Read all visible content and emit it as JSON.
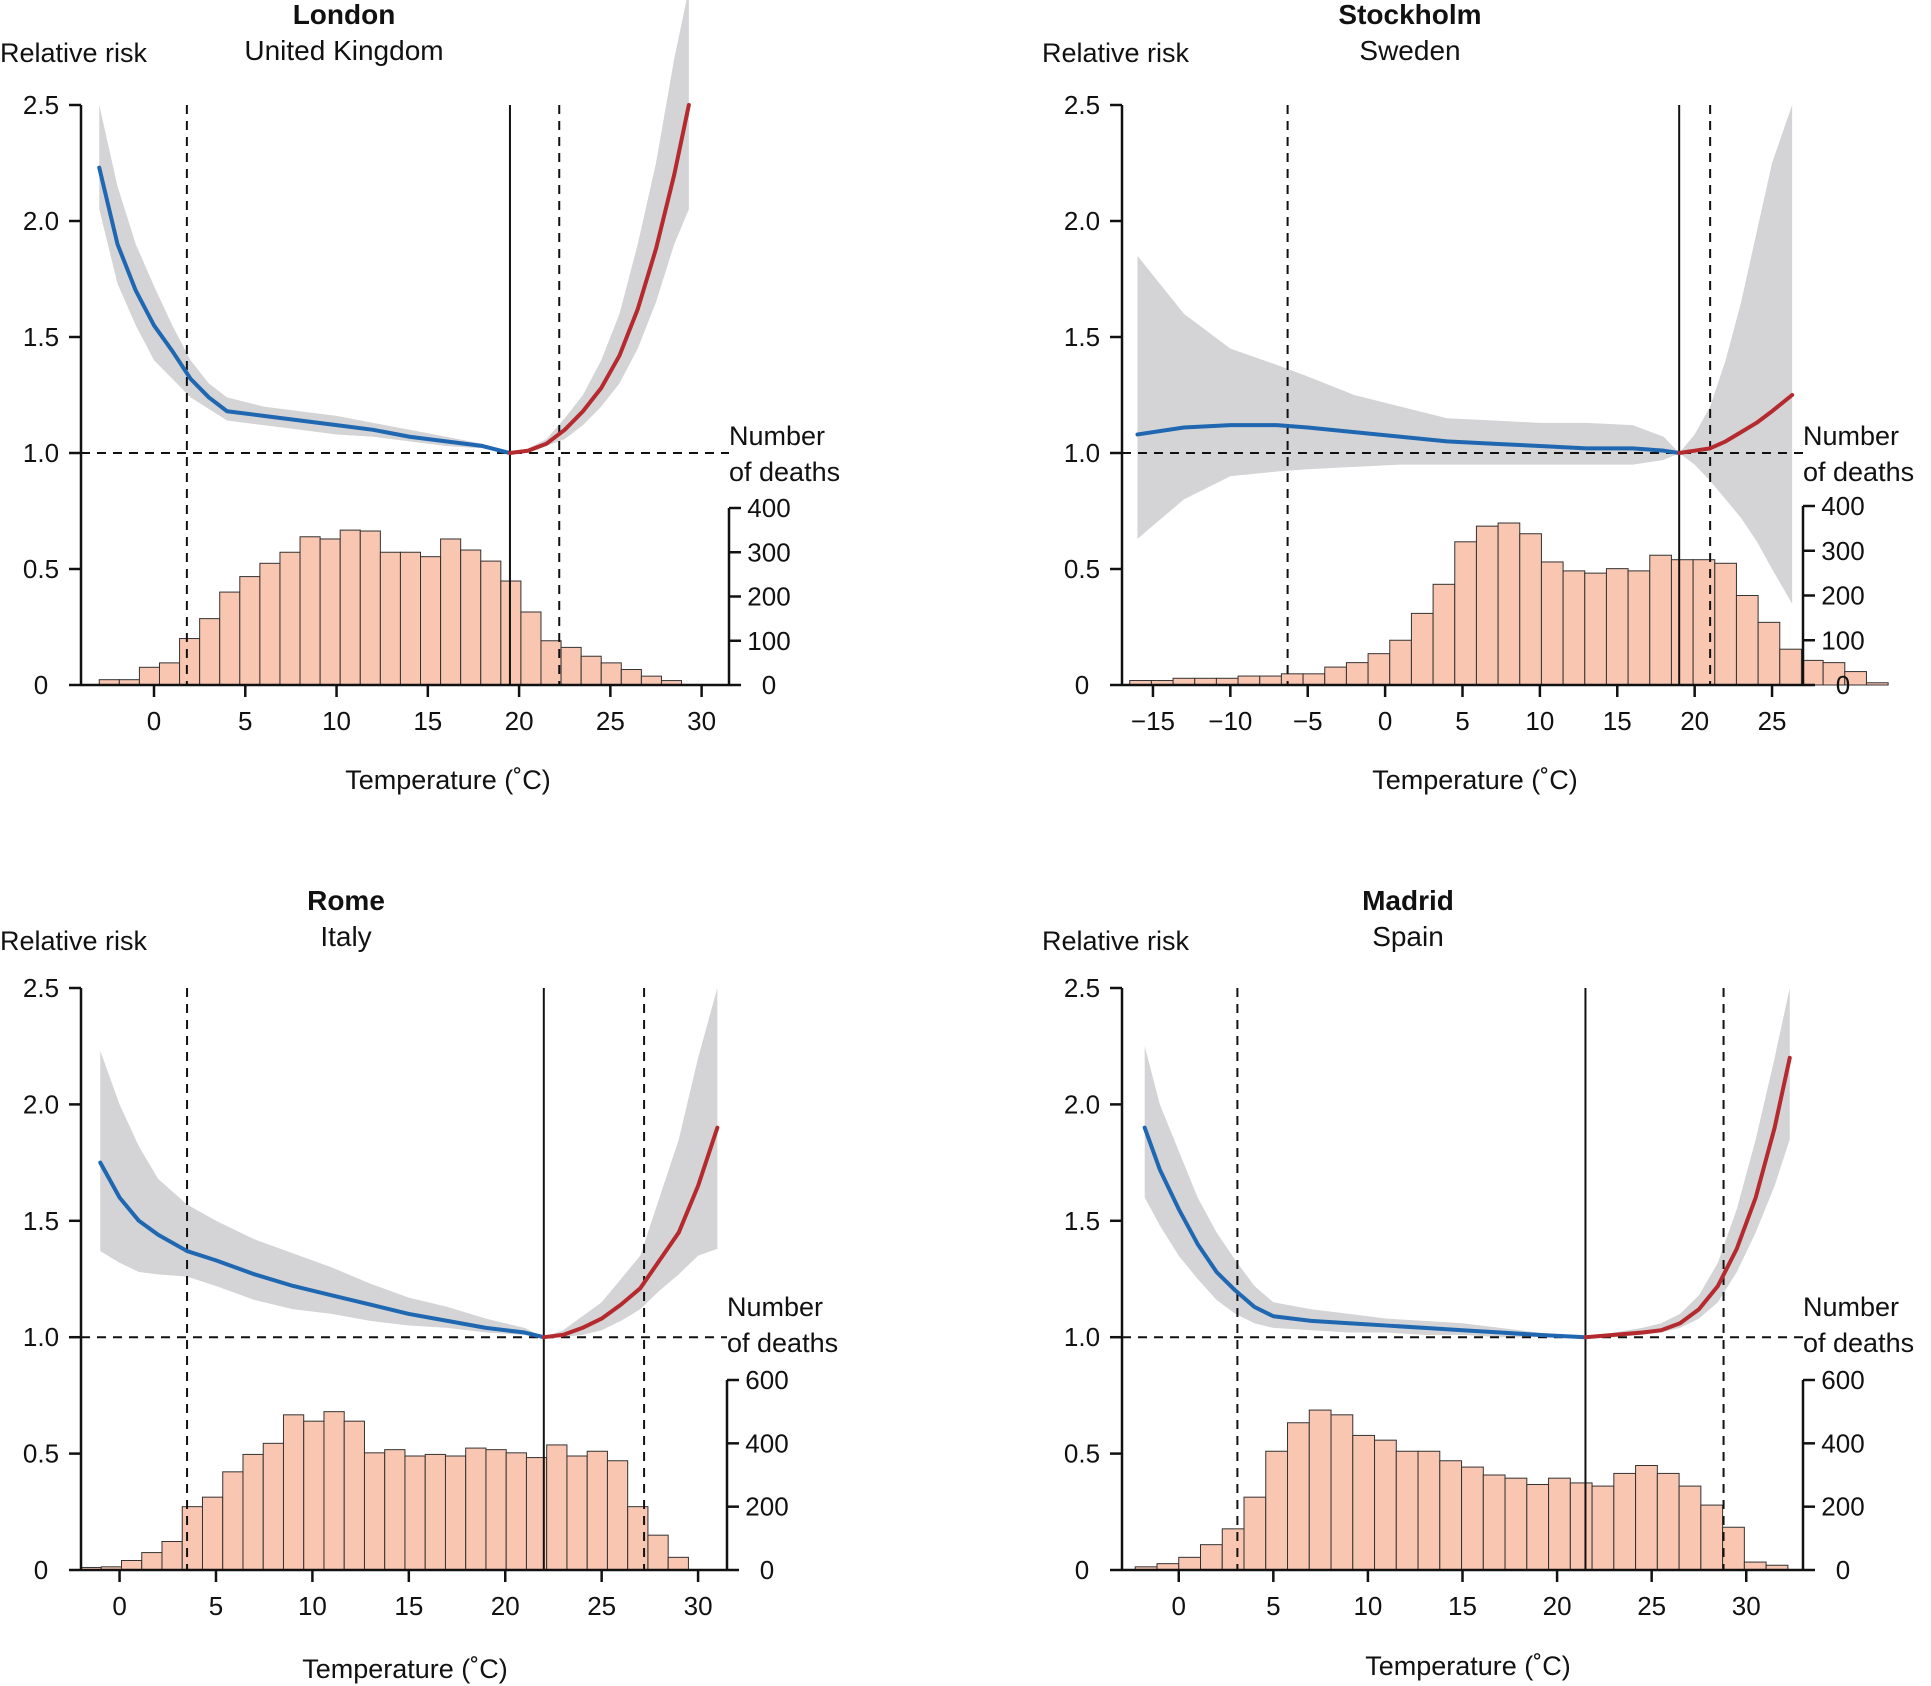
{
  "chart_data": [
    {
      "type": "line",
      "title": "London",
      "subtitle": "United Kingdom",
      "ylabel": "Relative risk",
      "y2label": [
        "Number",
        "of deaths"
      ],
      "xlabel": "Temperature (˚C)",
      "xlim": [
        -4,
        31.5
      ],
      "ylim": [
        0,
        2.5
      ],
      "y2lim": [
        0,
        400
      ],
      "xticks": [
        0,
        5,
        10,
        15,
        20,
        25,
        30
      ],
      "yticks": [
        0,
        0.5,
        1.0,
        1.5,
        2.0,
        2.5
      ],
      "ytick_labels": [
        "0",
        "0.5",
        "1.0",
        "1.5",
        "2.0",
        "2.5"
      ],
      "y2ticks": [
        0,
        100,
        200,
        300,
        400
      ],
      "mmt": 19.5,
      "percentile_lines": [
        1.8,
        22.2
      ],
      "cold_curve": {
        "x": [
          -3,
          -2,
          -1,
          0,
          1,
          2,
          3,
          4,
          6,
          8,
          10,
          12,
          14,
          16,
          18,
          19.5
        ],
        "y": [
          2.23,
          1.9,
          1.7,
          1.55,
          1.44,
          1.32,
          1.24,
          1.18,
          1.16,
          1.14,
          1.12,
          1.1,
          1.07,
          1.05,
          1.03,
          1.0
        ]
      },
      "cold_ci_upper": [
        2.5,
        2.15,
        1.9,
        1.72,
        1.55,
        1.4,
        1.3,
        1.24,
        1.2,
        1.18,
        1.16,
        1.13,
        1.1,
        1.07,
        1.04,
        1.0
      ],
      "cold_ci_lower": [
        2.05,
        1.73,
        1.55,
        1.4,
        1.32,
        1.24,
        1.19,
        1.14,
        1.12,
        1.1,
        1.08,
        1.07,
        1.05,
        1.03,
        1.02,
        1.0
      ],
      "heat_curve": {
        "x": [
          19.5,
          20.5,
          21.5,
          22.5,
          23.5,
          24.5,
          25.5,
          26.5,
          27.5,
          28.5,
          29.3
        ],
        "y": [
          1.0,
          1.01,
          1.04,
          1.1,
          1.18,
          1.28,
          1.42,
          1.62,
          1.88,
          2.2,
          2.5
        ]
      },
      "heat_ci_upper": [
        1.0,
        1.02,
        1.06,
        1.15,
        1.25,
        1.4,
        1.6,
        1.9,
        2.25,
        2.7,
        3.0
      ],
      "heat_ci_lower": [
        1.0,
        1.0,
        1.03,
        1.06,
        1.12,
        1.2,
        1.3,
        1.45,
        1.65,
        1.9,
        2.05
      ],
      "hist": {
        "start": -3,
        "width": 1.1,
        "counts": [
          12,
          12,
          40,
          50,
          105,
          150,
          210,
          245,
          275,
          300,
          335,
          330,
          350,
          348,
          300,
          300,
          290,
          330,
          305,
          280,
          235,
          165,
          100,
          85,
          65,
          50,
          35,
          20,
          10
        ]
      }
    },
    {
      "type": "line",
      "title": "Stockholm",
      "subtitle": "Sweden",
      "ylabel": "Relative risk",
      "y2label": [
        "Number",
        "of deaths"
      ],
      "xlabel": "Temperature (˚C)",
      "xlim": [
        -17,
        27
      ],
      "ylim": [
        0,
        2.5
      ],
      "y2lim": [
        0,
        400
      ],
      "xticks": [
        -15,
        -10,
        -5,
        0,
        5,
        10,
        15,
        20,
        25
      ],
      "xtick_labels": [
        "−15",
        "−10",
        "−5",
        "0",
        "5",
        "10",
        "15",
        "20",
        "25"
      ],
      "yticks": [
        0,
        0.5,
        1.0,
        1.5,
        2.0,
        2.5
      ],
      "ytick_labels": [
        "0",
        "0.5",
        "1.0",
        "1.5",
        "2.0",
        "2.5"
      ],
      "y2ticks": [
        0,
        100,
        200,
        300,
        400
      ],
      "mmt": 19,
      "percentile_lines": [
        -6.3,
        21
      ],
      "cold_curve": {
        "x": [
          -16,
          -13,
          -10,
          -7,
          -5,
          -2,
          1,
          4,
          7,
          10,
          13,
          16,
          18,
          19
        ],
        "y": [
          1.08,
          1.11,
          1.12,
          1.12,
          1.11,
          1.09,
          1.07,
          1.05,
          1.04,
          1.03,
          1.02,
          1.02,
          1.01,
          1.0
        ]
      },
      "cold_ci_upper": [
        1.85,
        1.6,
        1.45,
        1.38,
        1.33,
        1.25,
        1.2,
        1.15,
        1.14,
        1.13,
        1.13,
        1.12,
        1.07,
        1.0
      ],
      "cold_ci_lower": [
        0.63,
        0.8,
        0.9,
        0.92,
        0.93,
        0.94,
        0.95,
        0.95,
        0.95,
        0.95,
        0.95,
        0.95,
        0.97,
        1.0
      ],
      "heat_curve": {
        "x": [
          19,
          20,
          21,
          22,
          23,
          24,
          25,
          26.3
        ],
        "y": [
          1.0,
          1.01,
          1.02,
          1.05,
          1.09,
          1.13,
          1.18,
          1.25
        ]
      },
      "heat_ci_upper": [
        1.0,
        1.08,
        1.2,
        1.4,
        1.65,
        1.95,
        2.25,
        2.5
      ],
      "heat_ci_lower": [
        1.0,
        0.95,
        0.88,
        0.8,
        0.72,
        0.62,
        0.5,
        0.35
      ],
      "hist": {
        "start": -16.5,
        "width": 1.4,
        "counts": [
          10,
          10,
          15,
          15,
          15,
          20,
          20,
          25,
          25,
          40,
          50,
          70,
          100,
          160,
          225,
          320,
          355,
          362,
          338,
          275,
          255,
          250,
          260,
          255,
          290,
          280,
          280,
          272,
          200,
          140,
          80,
          55,
          50,
          30,
          5
        ]
      }
    },
    {
      "type": "line",
      "title": "Rome",
      "subtitle": "Italy",
      "ylabel": "Relative risk",
      "y2label": [
        "Number",
        "of deaths"
      ],
      "xlabel": "Temperature (˚C)",
      "xlim": [
        -2,
        31.5
      ],
      "ylim": [
        0,
        2.5
      ],
      "y2lim": [
        0,
        600
      ],
      "xticks": [
        0,
        5,
        10,
        15,
        20,
        25,
        30
      ],
      "yticks": [
        0,
        0.5,
        1.0,
        1.5,
        2.0,
        2.5
      ],
      "ytick_labels": [
        "0",
        "0.5",
        "1.0",
        "1.5",
        "2.0",
        "2.5"
      ],
      "y2ticks": [
        0,
        200,
        400,
        600
      ],
      "mmt": 22,
      "percentile_lines": [
        3.5,
        27.2
      ],
      "cold_curve": {
        "x": [
          -1,
          0,
          1,
          2,
          3.5,
          5,
          7,
          9,
          11,
          13,
          15,
          17,
          19,
          21,
          22
        ],
        "y": [
          1.75,
          1.6,
          1.5,
          1.44,
          1.37,
          1.33,
          1.27,
          1.22,
          1.18,
          1.14,
          1.1,
          1.07,
          1.04,
          1.02,
          1.0
        ]
      },
      "cold_ci_upper": [
        2.23,
        2.0,
        1.82,
        1.68,
        1.57,
        1.5,
        1.42,
        1.36,
        1.3,
        1.23,
        1.17,
        1.13,
        1.08,
        1.04,
        1.0
      ],
      "cold_ci_lower": [
        1.37,
        1.32,
        1.28,
        1.27,
        1.26,
        1.22,
        1.16,
        1.12,
        1.1,
        1.07,
        1.05,
        1.04,
        1.02,
        1.01,
        1.0
      ],
      "heat_curve": {
        "x": [
          22,
          23,
          24,
          25,
          26,
          27,
          28,
          29,
          30,
          31
        ],
        "y": [
          1.0,
          1.01,
          1.04,
          1.08,
          1.14,
          1.21,
          1.33,
          1.45,
          1.65,
          1.9
        ]
      },
      "heat_ci_upper": [
        1.0,
        1.03,
        1.09,
        1.15,
        1.25,
        1.35,
        1.6,
        1.85,
        2.2,
        2.5
      ],
      "heat_ci_lower": [
        1.0,
        1.0,
        1.01,
        1.03,
        1.07,
        1.12,
        1.2,
        1.27,
        1.35,
        1.38
      ],
      "hist": {
        "start": -2,
        "width": 1.05,
        "counts": [
          8,
          10,
          30,
          55,
          90,
          200,
          230,
          310,
          365,
          400,
          490,
          470,
          500,
          470,
          370,
          380,
          360,
          365,
          360,
          385,
          380,
          370,
          355,
          395,
          360,
          375,
          345,
          200,
          110,
          40
        ]
      }
    },
    {
      "type": "line",
      "title": "Madrid",
      "subtitle": "Spain",
      "ylabel": "Relative risk",
      "y2label": [
        "Number",
        "of deaths"
      ],
      "xlabel": "Temperature (˚C)",
      "xlim": [
        -3,
        33
      ],
      "ylim": [
        0,
        2.5
      ],
      "y2lim": [
        0,
        600
      ],
      "xticks": [
        0,
        5,
        10,
        15,
        20,
        25,
        30
      ],
      "yticks": [
        0,
        0.5,
        1.0,
        1.5,
        2.0,
        2.5
      ],
      "ytick_labels": [
        "0",
        "0.5",
        "1.0",
        "1.5",
        "2.0",
        "2.5"
      ],
      "y2ticks": [
        0,
        200,
        400,
        600
      ],
      "mmt": 21.5,
      "percentile_lines": [
        3.1,
        28.8
      ],
      "cold_curve": {
        "x": [
          -1.8,
          -1,
          0,
          1,
          2,
          3,
          4,
          5,
          7,
          9,
          11,
          13,
          15,
          17,
          19,
          21.5
        ],
        "y": [
          1.9,
          1.72,
          1.55,
          1.4,
          1.28,
          1.2,
          1.13,
          1.09,
          1.07,
          1.06,
          1.05,
          1.04,
          1.03,
          1.02,
          1.01,
          1.0
        ]
      },
      "cold_ci_upper": [
        2.25,
        2.0,
        1.8,
        1.6,
        1.45,
        1.33,
        1.22,
        1.15,
        1.12,
        1.1,
        1.08,
        1.07,
        1.06,
        1.04,
        1.02,
        1.0
      ],
      "cold_ci_lower": [
        1.6,
        1.48,
        1.35,
        1.25,
        1.16,
        1.1,
        1.06,
        1.04,
        1.03,
        1.02,
        1.02,
        1.01,
        1.01,
        1.0,
        1.0,
        1.0
      ],
      "heat_curve": {
        "x": [
          21.5,
          23,
          24.5,
          25.5,
          26.5,
          27.5,
          28.5,
          29.5,
          30.5,
          31.5,
          32.3
        ],
        "y": [
          1.0,
          1.01,
          1.02,
          1.03,
          1.06,
          1.12,
          1.22,
          1.38,
          1.6,
          1.9,
          2.2
        ]
      },
      "heat_ci_upper": [
        1.0,
        1.02,
        1.04,
        1.06,
        1.1,
        1.18,
        1.32,
        1.55,
        1.85,
        2.2,
        2.5
      ],
      "heat_ci_lower": [
        1.0,
        1.0,
        1.01,
        1.02,
        1.04,
        1.08,
        1.15,
        1.28,
        1.45,
        1.65,
        1.85
      ],
      "hist": {
        "start": -2.3,
        "width": 1.15,
        "counts": [
          10,
          20,
          40,
          80,
          130,
          230,
          375,
          465,
          505,
          490,
          425,
          410,
          375,
          375,
          345,
          325,
          300,
          290,
          270,
          290,
          275,
          265,
          305,
          330,
          305,
          265,
          205,
          135,
          25,
          15
        ]
      }
    }
  ]
}
